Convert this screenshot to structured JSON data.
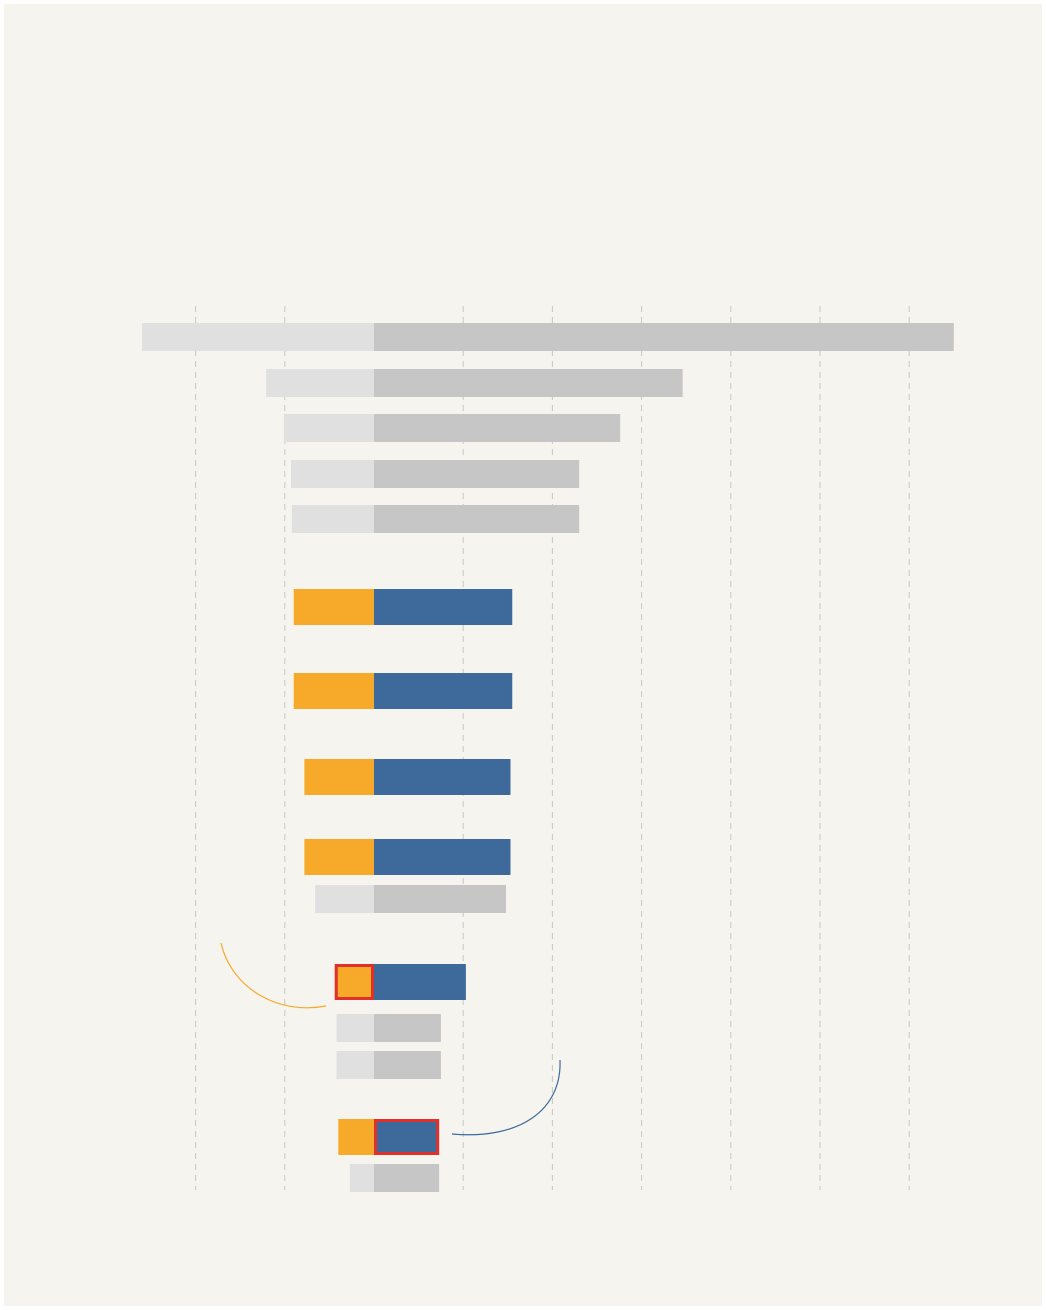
{
  "colors": {
    "background": "#f6f4ee",
    "grid": "#c6c6c6",
    "muted_left": "#e0e0e0",
    "muted_right": "#c6c6c6",
    "highlight_left": "#f7a929",
    "highlight_right": "#3e6a9b",
    "callout_box": "#e0302a",
    "annotation_orange": "#f7a929",
    "annotation_blue": "#3e6a9b"
  },
  "chart_data": {
    "type": "bar",
    "orientation": "horizontal-diverging",
    "title": "",
    "xlabel": "",
    "ylabel": "",
    "grid": true,
    "xlim": [
      -26,
      65
    ],
    "gridlines": [
      -20,
      -10,
      10,
      20,
      30,
      40,
      50,
      60
    ],
    "rows": [
      {
        "left": 26.0,
        "right": 65.0,
        "highlight": false,
        "callout": null
      },
      {
        "left": 12.1,
        "right": 34.6,
        "highlight": false,
        "callout": null
      },
      {
        "left": 10.1,
        "right": 27.6,
        "highlight": false,
        "callout": null
      },
      {
        "left": 9.3,
        "right": 23.0,
        "highlight": false,
        "callout": null
      },
      {
        "left": 9.2,
        "right": 23.0,
        "highlight": false,
        "callout": null
      },
      {
        "left": 9.0,
        "right": 15.5,
        "highlight": true,
        "callout": null
      },
      {
        "left": 9.0,
        "right": 15.5,
        "highlight": true,
        "callout": null
      },
      {
        "left": 7.8,
        "right": 15.3,
        "highlight": true,
        "callout": null
      },
      {
        "left": 7.8,
        "right": 15.3,
        "highlight": true,
        "callout": null
      },
      {
        "left": 6.6,
        "right": 14.8,
        "highlight": false,
        "callout": null
      },
      {
        "left": 4.4,
        "right": 10.3,
        "highlight": true,
        "callout": "left"
      },
      {
        "left": 4.2,
        "right": 7.5,
        "highlight": false,
        "callout": null
      },
      {
        "left": 4.2,
        "right": 7.5,
        "highlight": false,
        "callout": null
      },
      {
        "left": 4.0,
        "right": 7.3,
        "highlight": true,
        "callout": "right"
      },
      {
        "left": 2.7,
        "right": 7.3,
        "highlight": false,
        "callout": null
      }
    ]
  }
}
